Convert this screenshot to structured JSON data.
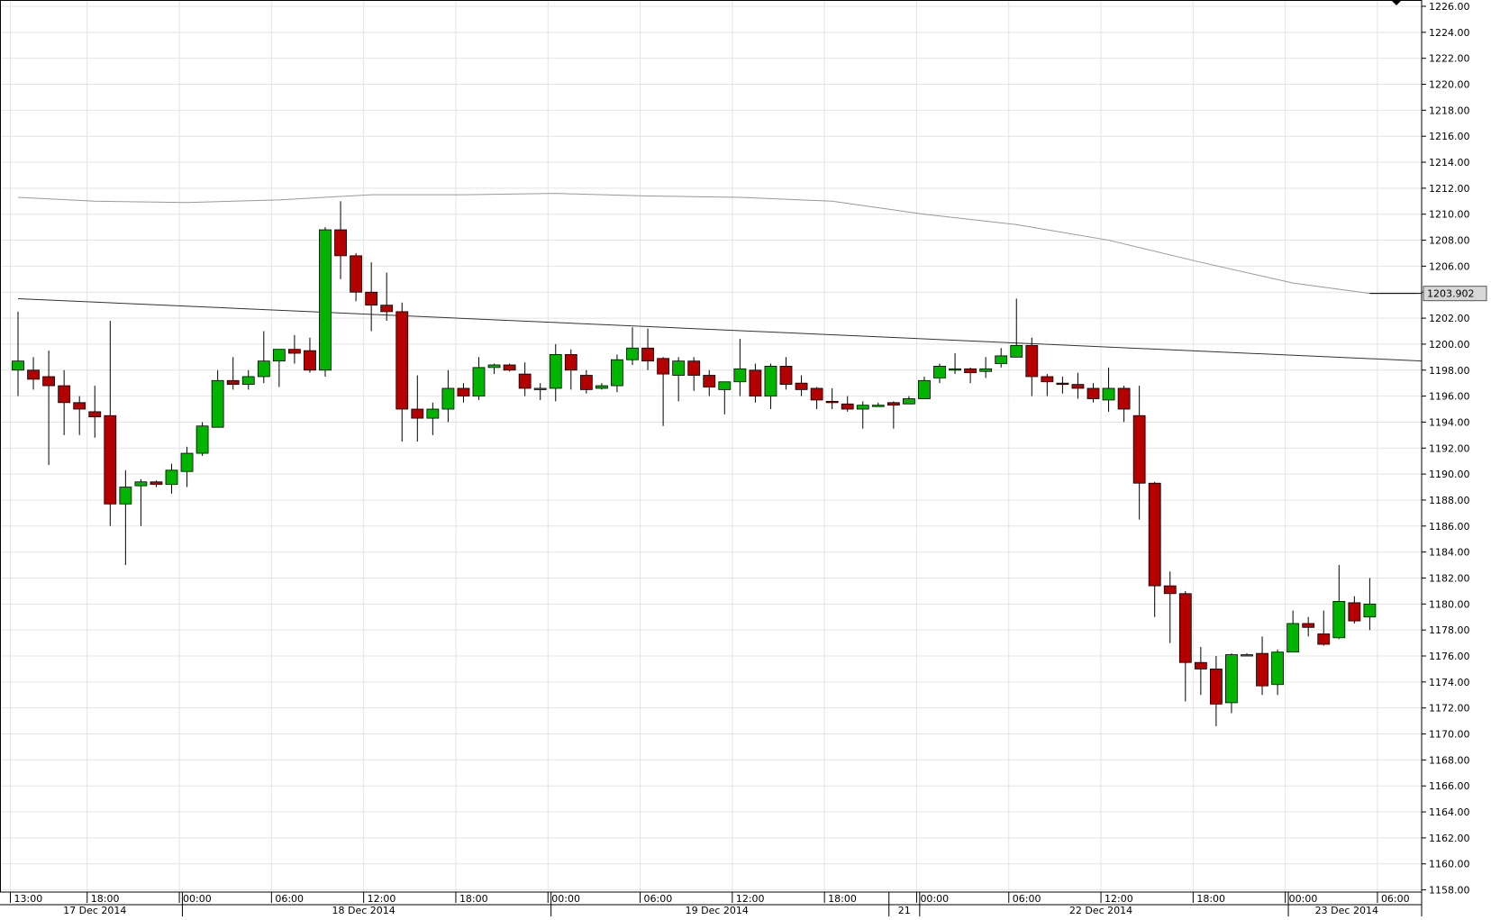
{
  "chart_data": {
    "type": "candlestick",
    "ylim": [
      1158,
      1226
    ],
    "y_ticks": [
      "1226.00",
      "1224.00",
      "1222.00",
      "1220.00",
      "1218.00",
      "1216.00",
      "1214.00",
      "1212.00",
      "1210.00",
      "1208.00",
      "1206.00",
      "1204.00",
      "1202.00",
      "1200.00",
      "1198.00",
      "1196.00",
      "1194.00",
      "1192.00",
      "1190.00",
      "1188.00",
      "1186.00",
      "1184.00",
      "1182.00",
      "1180.00",
      "1178.00",
      "1176.00",
      "1174.00",
      "1172.00",
      "1170.00",
      "1168.00",
      "1166.00",
      "1164.00",
      "1162.00",
      "1160.00",
      "1158.00"
    ],
    "time_labels": [
      "13:00",
      "18:00",
      "00:00",
      "06:00",
      "12:00",
      "18:00",
      "00:00",
      "06:00",
      "12:00",
      "18:00",
      "00:00",
      "06:00",
      "12:00",
      "18:00",
      "00:00",
      "06:00"
    ],
    "time_label_slots": [
      0,
      5,
      11,
      17,
      23,
      29,
      35,
      41,
      47,
      53,
      59,
      65,
      71,
      77,
      83,
      89
    ],
    "date_labels": [
      "17 Dec 2014",
      "18 Dec 2014",
      "19 Dec 2014",
      "21",
      "22 Dec 2014",
      "23 Dec 2014"
    ],
    "date_label_slots": [
      5,
      22.5,
      45.5,
      57.7,
      70.5,
      86.5
    ],
    "date_separator_slots": [
      10.7,
      34.7,
      56.7,
      58.7,
      82.7
    ],
    "current_price_label": "1203.902",
    "current_price": 1203.9,
    "colors": {
      "up": "#00b400",
      "down": "#b40000",
      "grid": "#e4e4e4",
      "ma": "#999999",
      "trendline": "#333333"
    },
    "moving_average": [
      [
        0,
        1211.3
      ],
      [
        5,
        1211.0
      ],
      [
        11,
        1210.9
      ],
      [
        17,
        1211.1
      ],
      [
        23,
        1211.5
      ],
      [
        29,
        1211.5
      ],
      [
        35,
        1211.6
      ],
      [
        41,
        1211.4
      ],
      [
        47,
        1211.3
      ],
      [
        53,
        1211.0
      ],
      [
        59,
        1210.0
      ],
      [
        65,
        1209.2
      ],
      [
        71,
        1208.0
      ],
      [
        77,
        1206.3
      ],
      [
        83,
        1204.7
      ],
      [
        88,
        1203.9
      ],
      [
        91,
        1203.9
      ]
    ],
    "trendline": [
      [
        0,
        1203.5
      ],
      [
        91.5,
        1198.7
      ]
    ],
    "candles": [
      {
        "o": 1198.0,
        "h": 1202.5,
        "l": 1196.0,
        "c": 1198.7
      },
      {
        "o": 1198.0,
        "h": 1199.0,
        "l": 1196.5,
        "c": 1197.3
      },
      {
        "o": 1197.5,
        "h": 1199.5,
        "l": 1190.7,
        "c": 1196.8
      },
      {
        "o": 1196.8,
        "h": 1198.0,
        "l": 1193.0,
        "c": 1195.5
      },
      {
        "o": 1195.5,
        "h": 1196.0,
        "l": 1193.0,
        "c": 1195.0
      },
      {
        "o": 1194.8,
        "h": 1196.8,
        "l": 1192.8,
        "c": 1194.4
      },
      {
        "o": 1194.5,
        "h": 1201.8,
        "l": 1186.0,
        "c": 1187.7
      },
      {
        "o": 1187.7,
        "h": 1190.3,
        "l": 1183.0,
        "c": 1189.0
      },
      {
        "o": 1189.1,
        "h": 1189.6,
        "l": 1186.0,
        "c": 1189.4
      },
      {
        "o": 1189.4,
        "h": 1189.5,
        "l": 1189.0,
        "c": 1189.2
      },
      {
        "o": 1189.2,
        "h": 1190.8,
        "l": 1188.5,
        "c": 1190.3
      },
      {
        "o": 1190.2,
        "h": 1192.1,
        "l": 1189.0,
        "c": 1191.6
      },
      {
        "o": 1191.6,
        "h": 1194.0,
        "l": 1191.4,
        "c": 1193.7
      },
      {
        "o": 1193.6,
        "h": 1198.0,
        "l": 1193.6,
        "c": 1197.2
      },
      {
        "o": 1197.2,
        "h": 1199.0,
        "l": 1196.5,
        "c": 1196.9
      },
      {
        "o": 1196.9,
        "h": 1198.0,
        "l": 1196.5,
        "c": 1197.5
      },
      {
        "o": 1197.5,
        "h": 1201.0,
        "l": 1197.0,
        "c": 1198.7
      },
      {
        "o": 1198.7,
        "h": 1199.5,
        "l": 1196.7,
        "c": 1199.6
      },
      {
        "o": 1199.6,
        "h": 1200.7,
        "l": 1198.5,
        "c": 1199.3
      },
      {
        "o": 1199.5,
        "h": 1200.5,
        "l": 1197.8,
        "c": 1198.0
      },
      {
        "o": 1198.0,
        "h": 1209.0,
        "l": 1197.5,
        "c": 1208.8
      },
      {
        "o": 1208.8,
        "h": 1211.0,
        "l": 1205.0,
        "c": 1206.8
      },
      {
        "o": 1206.8,
        "h": 1207.0,
        "l": 1203.3,
        "c": 1204.0
      },
      {
        "o": 1204.0,
        "h": 1206.3,
        "l": 1201.0,
        "c": 1203.0
      },
      {
        "o": 1203.0,
        "h": 1205.5,
        "l": 1201.8,
        "c": 1202.5
      },
      {
        "o": 1202.5,
        "h": 1203.2,
        "l": 1192.5,
        "c": 1195.0
      },
      {
        "o": 1195.0,
        "h": 1197.6,
        "l": 1192.5,
        "c": 1194.3
      },
      {
        "o": 1194.3,
        "h": 1195.5,
        "l": 1193.0,
        "c": 1195.0
      },
      {
        "o": 1195.0,
        "h": 1198.0,
        "l": 1194.0,
        "c": 1196.6
      },
      {
        "o": 1196.6,
        "h": 1197.0,
        "l": 1195.5,
        "c": 1196.0
      },
      {
        "o": 1196.0,
        "h": 1199.0,
        "l": 1195.7,
        "c": 1198.2
      },
      {
        "o": 1198.2,
        "h": 1198.5,
        "l": 1197.7,
        "c": 1198.4
      },
      {
        "o": 1198.4,
        "h": 1198.5,
        "l": 1197.9,
        "c": 1198.0
      },
      {
        "o": 1197.7,
        "h": 1198.6,
        "l": 1196.0,
        "c": 1196.6
      },
      {
        "o": 1196.5,
        "h": 1197.0,
        "l": 1195.7,
        "c": 1196.6
      },
      {
        "o": 1196.6,
        "h": 1200.0,
        "l": 1195.6,
        "c": 1199.2
      },
      {
        "o": 1199.2,
        "h": 1199.6,
        "l": 1196.5,
        "c": 1198.0
      },
      {
        "o": 1197.6,
        "h": 1198.0,
        "l": 1196.2,
        "c": 1196.5
      },
      {
        "o": 1196.6,
        "h": 1197.0,
        "l": 1196.5,
        "c": 1196.8
      },
      {
        "o": 1196.8,
        "h": 1199.2,
        "l": 1196.3,
        "c": 1198.8
      },
      {
        "o": 1198.8,
        "h": 1201.3,
        "l": 1198.4,
        "c": 1199.7
      },
      {
        "o": 1199.7,
        "h": 1201.2,
        "l": 1198.0,
        "c": 1198.7
      },
      {
        "o": 1198.9,
        "h": 1199.0,
        "l": 1193.7,
        "c": 1197.7
      },
      {
        "o": 1197.6,
        "h": 1199.0,
        "l": 1195.6,
        "c": 1198.7
      },
      {
        "o": 1198.7,
        "h": 1199.0,
        "l": 1196.4,
        "c": 1197.6
      },
      {
        "o": 1197.6,
        "h": 1198.0,
        "l": 1196.0,
        "c": 1196.7
      },
      {
        "o": 1196.5,
        "h": 1197.1,
        "l": 1194.6,
        "c": 1197.1
      },
      {
        "o": 1197.1,
        "h": 1200.4,
        "l": 1196.0,
        "c": 1198.1
      },
      {
        "o": 1198.0,
        "h": 1198.5,
        "l": 1195.5,
        "c": 1196.0
      },
      {
        "o": 1196.0,
        "h": 1198.5,
        "l": 1195.0,
        "c": 1198.3
      },
      {
        "o": 1198.3,
        "h": 1199.0,
        "l": 1196.5,
        "c": 1196.9
      },
      {
        "o": 1197.0,
        "h": 1197.6,
        "l": 1196.0,
        "c": 1196.5
      },
      {
        "o": 1196.6,
        "h": 1196.7,
        "l": 1195.0,
        "c": 1195.7
      },
      {
        "o": 1195.6,
        "h": 1196.6,
        "l": 1195.0,
        "c": 1195.5
      },
      {
        "o": 1195.4,
        "h": 1196.0,
        "l": 1194.8,
        "c": 1195.0
      },
      {
        "o": 1195.0,
        "h": 1195.6,
        "l": 1193.5,
        "c": 1195.3
      },
      {
        "o": 1195.3,
        "h": 1195.5,
        "l": 1195.2,
        "c": 1195.3
      },
      {
        "o": 1195.5,
        "h": 1195.6,
        "l": 1193.5,
        "c": 1195.3
      },
      {
        "o": 1195.4,
        "h": 1196.0,
        "l": 1195.4,
        "c": 1195.8
      },
      {
        "o": 1195.8,
        "h": 1197.5,
        "l": 1195.8,
        "c": 1197.2
      },
      {
        "o": 1197.4,
        "h": 1198.5,
        "l": 1197.0,
        "c": 1198.3
      },
      {
        "o": 1198.0,
        "h": 1199.3,
        "l": 1197.7,
        "c": 1198.1
      },
      {
        "o": 1198.1,
        "h": 1198.2,
        "l": 1197.0,
        "c": 1197.8
      },
      {
        "o": 1197.9,
        "h": 1199.0,
        "l": 1197.4,
        "c": 1198.1
      },
      {
        "o": 1198.5,
        "h": 1199.7,
        "l": 1198.2,
        "c": 1199.1
      },
      {
        "o": 1199.0,
        "h": 1203.5,
        "l": 1199.0,
        "c": 1199.9
      },
      {
        "o": 1199.9,
        "h": 1200.5,
        "l": 1196.0,
        "c": 1197.5
      },
      {
        "o": 1197.5,
        "h": 1197.7,
        "l": 1196.0,
        "c": 1197.1
      },
      {
        "o": 1197.0,
        "h": 1197.5,
        "l": 1196.2,
        "c": 1196.9
      },
      {
        "o": 1196.9,
        "h": 1197.8,
        "l": 1195.8,
        "c": 1196.6
      },
      {
        "o": 1196.6,
        "h": 1197.0,
        "l": 1195.5,
        "c": 1195.8
      },
      {
        "o": 1195.7,
        "h": 1198.2,
        "l": 1194.8,
        "c": 1196.6
      },
      {
        "o": 1196.6,
        "h": 1196.8,
        "l": 1194.0,
        "c": 1195.0
      },
      {
        "o": 1194.5,
        "h": 1196.8,
        "l": 1186.5,
        "c": 1189.3
      },
      {
        "o": 1189.3,
        "h": 1189.4,
        "l": 1179.0,
        "c": 1181.4
      },
      {
        "o": 1181.4,
        "h": 1182.5,
        "l": 1177.0,
        "c": 1180.8
      },
      {
        "o": 1180.8,
        "h": 1181.0,
        "l": 1172.5,
        "c": 1175.5
      },
      {
        "o": 1175.5,
        "h": 1176.7,
        "l": 1173.0,
        "c": 1175.0
      },
      {
        "o": 1175.0,
        "h": 1176.0,
        "l": 1170.6,
        "c": 1172.3
      },
      {
        "o": 1172.4,
        "h": 1176.2,
        "l": 1171.6,
        "c": 1176.1
      },
      {
        "o": 1176.1,
        "h": 1176.2,
        "l": 1176.0,
        "c": 1176.1
      },
      {
        "o": 1176.2,
        "h": 1177.5,
        "l": 1173.0,
        "c": 1173.7
      },
      {
        "o": 1173.8,
        "h": 1176.5,
        "l": 1173.0,
        "c": 1176.3
      },
      {
        "o": 1176.3,
        "h": 1179.5,
        "l": 1176.3,
        "c": 1178.5
      },
      {
        "o": 1178.5,
        "h": 1179.0,
        "l": 1177.5,
        "c": 1178.2
      },
      {
        "o": 1177.7,
        "h": 1179.5,
        "l": 1176.8,
        "c": 1176.9
      },
      {
        "o": 1177.4,
        "h": 1183.0,
        "l": 1177.3,
        "c": 1180.2
      },
      {
        "o": 1180.1,
        "h": 1180.6,
        "l": 1178.5,
        "c": 1178.7
      },
      {
        "o": 1179.0,
        "h": 1182.0,
        "l": 1178.0,
        "c": 1180.0
      }
    ]
  }
}
